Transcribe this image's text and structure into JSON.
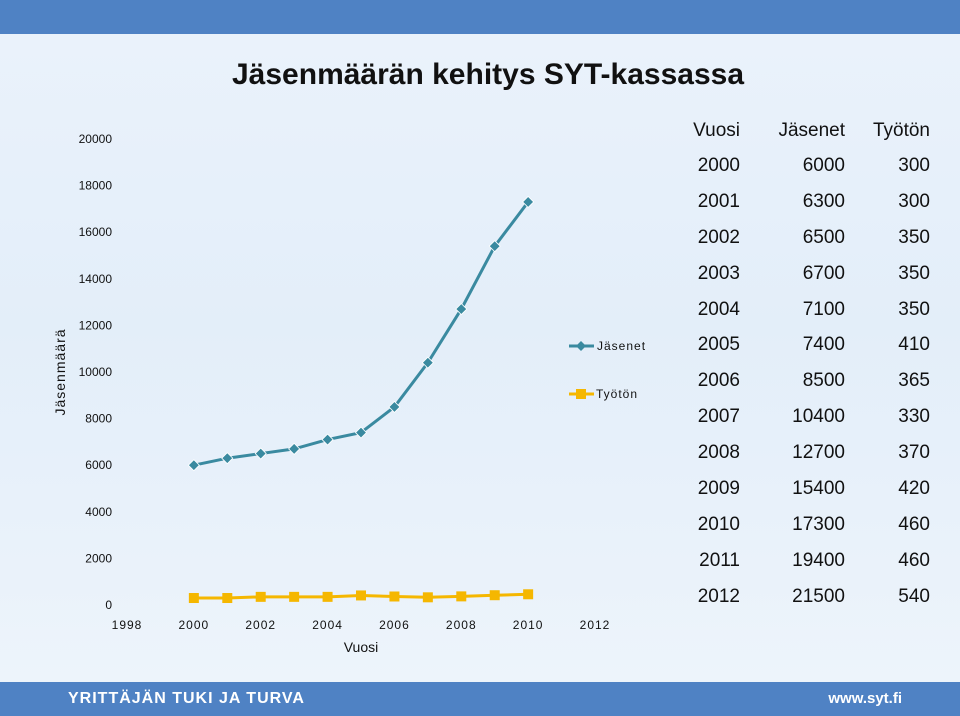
{
  "slide": {
    "title": "Jäsenmäärän kehitys SYT-kassassa",
    "footer_left": "YRITTÄJÄN TUKI JA TURVA",
    "footer_right": "www.syt.fi"
  },
  "colors": {
    "bars": "#4f82c4",
    "jasenet": "#3a8aa0",
    "tyoton": "#f5b700"
  },
  "chart_data": {
    "type": "line",
    "ylabel": "Jäsenmäärä",
    "xlabel": "Vuosi",
    "ylim": [
      0,
      20000
    ],
    "xlim": [
      1998,
      2012
    ],
    "yticks": [
      0,
      2000,
      4000,
      6000,
      8000,
      10000,
      12000,
      14000,
      16000,
      18000,
      20000
    ],
    "xticks": [
      1998,
      2000,
      2002,
      2004,
      2006,
      2008,
      2010,
      2012
    ],
    "x": [
      2000,
      2001,
      2002,
      2003,
      2004,
      2005,
      2006,
      2007,
      2008,
      2009,
      2010
    ],
    "series": [
      {
        "name": "Jäsenet",
        "values": [
          6000,
          6300,
          6500,
          6700,
          7100,
          7400,
          8500,
          10400,
          12700,
          15400,
          17300
        ]
      },
      {
        "name": "Työtön",
        "values": [
          300,
          300,
          350,
          350,
          350,
          410,
          365,
          330,
          370,
          420,
          460
        ]
      }
    ],
    "legend_position": "right"
  },
  "table": {
    "headers": [
      "Vuosi",
      "Jäsenet",
      "Työtön"
    ],
    "rows": [
      [
        "2000",
        "6000",
        "300"
      ],
      [
        "2001",
        "6300",
        "300"
      ],
      [
        "2002",
        "6500",
        "350"
      ],
      [
        "2003",
        "6700",
        "350"
      ],
      [
        "2004",
        "7100",
        "350"
      ],
      [
        "2005",
        "7400",
        "410"
      ],
      [
        "2006",
        "8500",
        "365"
      ],
      [
        "2007",
        "10400",
        "330"
      ],
      [
        "2008",
        "12700",
        "370"
      ],
      [
        "2009",
        "15400",
        "420"
      ],
      [
        "2010",
        "17300",
        "460"
      ],
      [
        "2011",
        "19400",
        "460"
      ],
      [
        "2012",
        "21500",
        "540"
      ]
    ]
  }
}
